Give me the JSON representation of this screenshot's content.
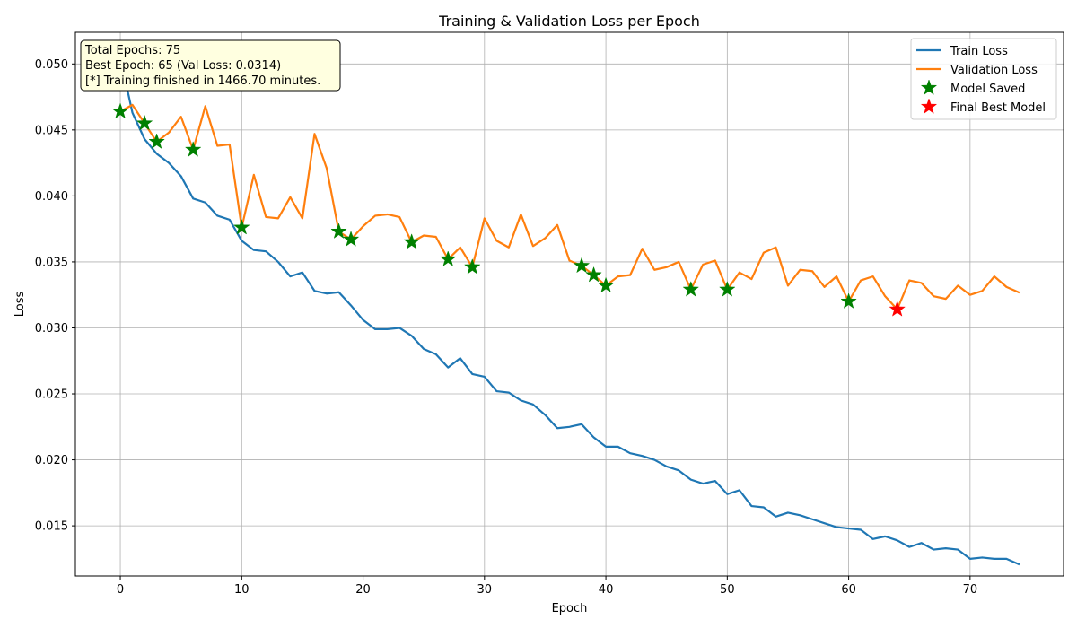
{
  "chart_data": {
    "type": "line",
    "title": "Training & Validation Loss per Epoch",
    "xlabel": "Epoch",
    "ylabel": "Loss",
    "xlim": [
      -3.7,
      77.7
    ],
    "ylim": [
      0.0112,
      0.0524
    ],
    "xticks": [
      0,
      10,
      20,
      30,
      40,
      50,
      60,
      70
    ],
    "yticks": [
      0.015,
      0.02,
      0.025,
      0.03,
      0.035,
      0.04,
      0.045,
      0.05
    ],
    "ytick_labels": [
      "0.015",
      "0.020",
      "0.025",
      "0.030",
      "0.035",
      "0.040",
      "0.045",
      "0.050"
    ],
    "grid": true,
    "legend_position": "top-right",
    "series": [
      {
        "name": "Train Loss",
        "color": "#1f77b4",
        "x": [
          0,
          1,
          2,
          3,
          4,
          5,
          6,
          7,
          8,
          9,
          10,
          11,
          12,
          13,
          14,
          15,
          16,
          17,
          18,
          19,
          20,
          21,
          22,
          23,
          24,
          25,
          26,
          27,
          28,
          29,
          30,
          31,
          32,
          33,
          34,
          35,
          36,
          37,
          38,
          39,
          40,
          41,
          42,
          43,
          44,
          45,
          46,
          47,
          48,
          49,
          50,
          51,
          52,
          53,
          54,
          55,
          56,
          57,
          58,
          59,
          60,
          61,
          62,
          63,
          64,
          65,
          66,
          67,
          68,
          69,
          70,
          71,
          72,
          73,
          74
        ],
        "values": [
          0.0505,
          0.0463,
          0.0443,
          0.0432,
          0.0425,
          0.0415,
          0.0398,
          0.0395,
          0.0385,
          0.0382,
          0.0366,
          0.0359,
          0.0358,
          0.035,
          0.0339,
          0.0342,
          0.0328,
          0.0326,
          0.0327,
          0.0317,
          0.0306,
          0.0299,
          0.0299,
          0.03,
          0.0294,
          0.0284,
          0.028,
          0.027,
          0.0277,
          0.0265,
          0.0263,
          0.0252,
          0.0251,
          0.0245,
          0.0242,
          0.0234,
          0.0224,
          0.0225,
          0.0227,
          0.0217,
          0.021,
          0.021,
          0.0205,
          0.0203,
          0.02,
          0.0195,
          0.0192,
          0.0185,
          0.0182,
          0.0184,
          0.0174,
          0.0177,
          0.0165,
          0.0164,
          0.0157,
          0.016,
          0.0158,
          0.0155,
          0.0152,
          0.0149,
          0.0148,
          0.0147,
          0.014,
          0.0142,
          0.0139,
          0.0134,
          0.0137,
          0.0132,
          0.0133,
          0.0132,
          0.0125,
          0.0126,
          0.0125,
          0.0125,
          0.0121
        ]
      },
      {
        "name": "Validation Loss",
        "color": "#ff7f0e",
        "x": [
          0,
          1,
          2,
          3,
          4,
          5,
          6,
          7,
          8,
          9,
          10,
          11,
          12,
          13,
          14,
          15,
          16,
          17,
          18,
          19,
          20,
          21,
          22,
          23,
          24,
          25,
          26,
          27,
          28,
          29,
          30,
          31,
          32,
          33,
          34,
          35,
          36,
          37,
          38,
          39,
          40,
          41,
          42,
          43,
          44,
          45,
          46,
          47,
          48,
          49,
          50,
          51,
          52,
          53,
          54,
          55,
          56,
          57,
          58,
          59,
          60,
          61,
          62,
          63,
          64,
          65,
          66,
          67,
          68,
          69,
          70,
          71,
          72,
          73,
          74
        ],
        "values": [
          0.0464,
          0.0469,
          0.0455,
          0.0441,
          0.0448,
          0.046,
          0.0435,
          0.0468,
          0.0438,
          0.0439,
          0.0376,
          0.0416,
          0.0384,
          0.0383,
          0.0399,
          0.0383,
          0.0447,
          0.0421,
          0.0373,
          0.0367,
          0.0377,
          0.0385,
          0.0386,
          0.0384,
          0.0365,
          0.037,
          0.0369,
          0.0352,
          0.0361,
          0.0346,
          0.0383,
          0.0366,
          0.0361,
          0.0386,
          0.0362,
          0.0368,
          0.0378,
          0.0351,
          0.0347,
          0.034,
          0.0332,
          0.0339,
          0.034,
          0.036,
          0.0344,
          0.0346,
          0.035,
          0.0329,
          0.0348,
          0.0351,
          0.0329,
          0.0342,
          0.0337,
          0.0357,
          0.0361,
          0.0332,
          0.0344,
          0.0343,
          0.0331,
          0.0339,
          0.032,
          0.0336,
          0.0339,
          0.0324,
          0.0314,
          0.0336,
          0.0334,
          0.0324,
          0.0322,
          0.0332,
          0.0325,
          0.0328,
          0.0339,
          0.0331,
          0.0327
        ]
      },
      {
        "name": "Model Saved",
        "color": "#008000",
        "marker": "star",
        "x": [
          0,
          2,
          3,
          6,
          10,
          18,
          19,
          24,
          27,
          29,
          38,
          39,
          40,
          47,
          50,
          60
        ],
        "values": [
          0.0464,
          0.0455,
          0.0441,
          0.0435,
          0.0376,
          0.0373,
          0.0367,
          0.0365,
          0.0352,
          0.0346,
          0.0347,
          0.034,
          0.0332,
          0.0329,
          0.0329,
          0.032
        ]
      },
      {
        "name": "Final Best Model",
        "color": "#ff0000",
        "marker": "star",
        "x": [
          64
        ],
        "values": [
          0.0314
        ]
      }
    ],
    "annotation": {
      "lines": [
        "Total Epochs: 75",
        "Best Epoch: 65 (Val Loss: 0.0314)",
        "[*] Training finished in 1466.70 minutes."
      ]
    }
  }
}
